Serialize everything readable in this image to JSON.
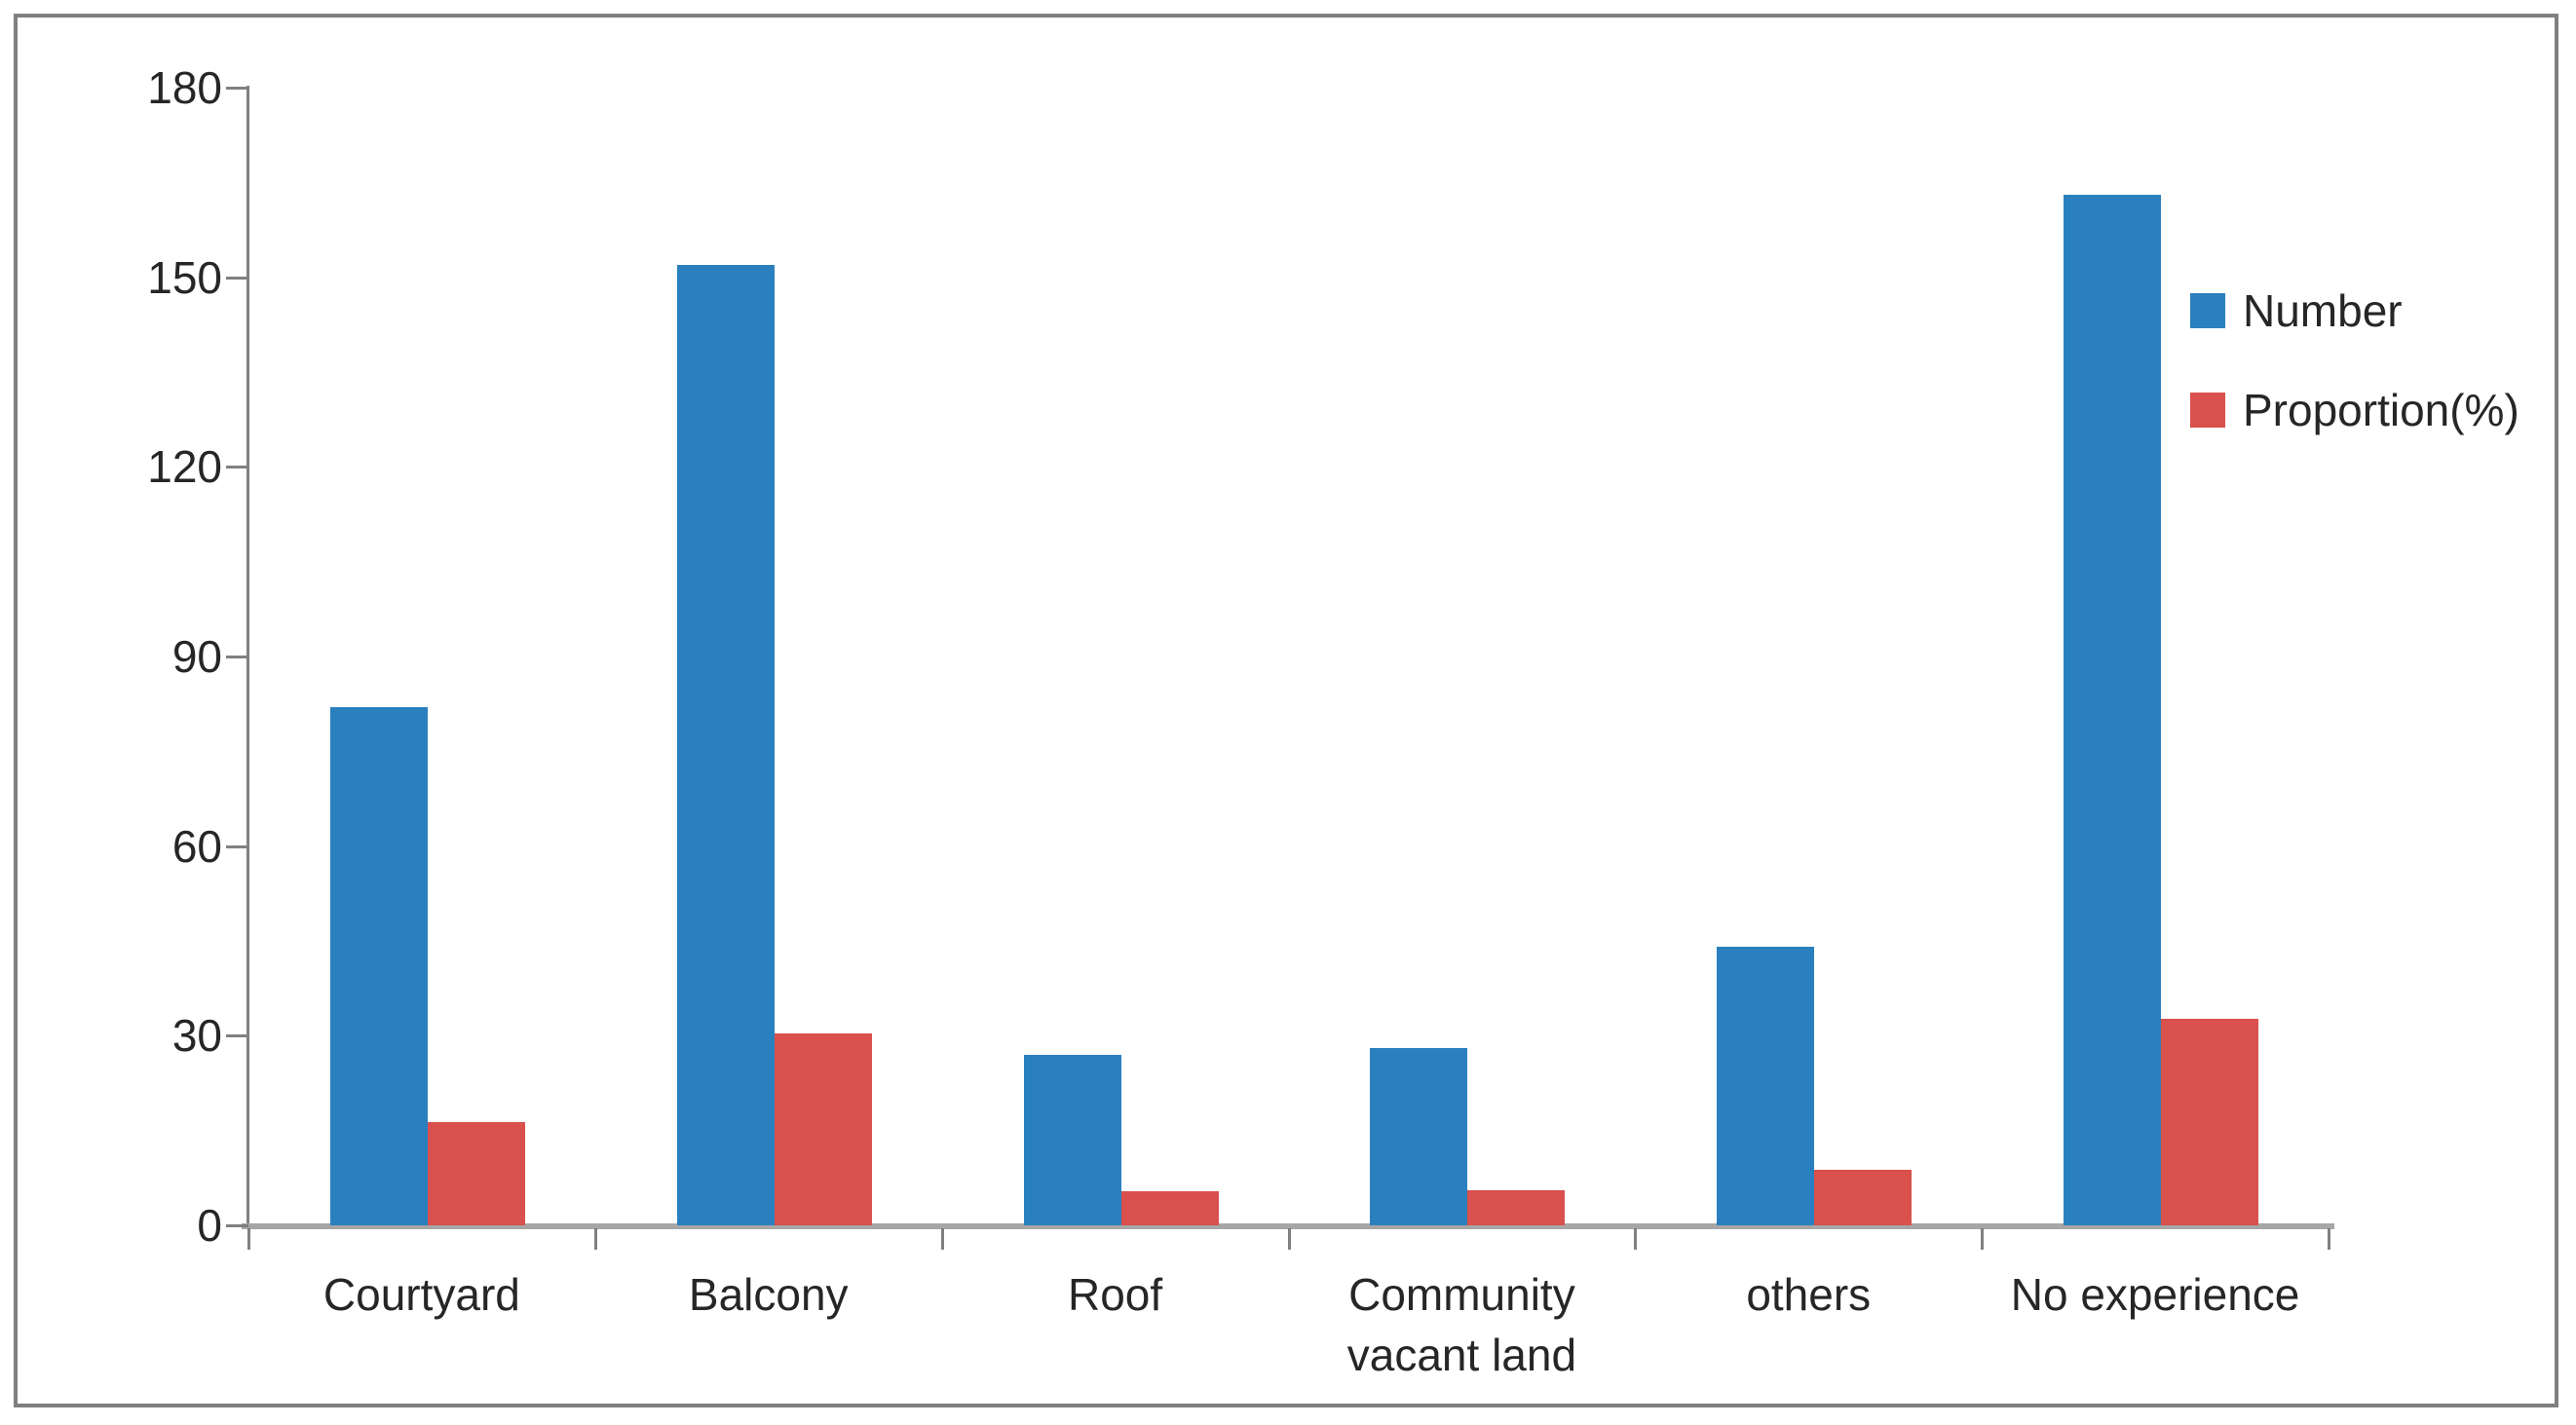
{
  "figure": {
    "background_color": "#ffffff",
    "frame_border_color": "#7f7f7f",
    "axis_line_color": "#808080",
    "baseline_color": "#a6a6a6",
    "text_color": "#262626"
  },
  "chart_data": {
    "type": "bar",
    "title": "",
    "xlabel": "",
    "ylabel": "",
    "categories": [
      "Courtyard",
      "Balcony",
      "Roof",
      "Community vacant land",
      "others",
      "No experience"
    ],
    "series": [
      {
        "name": "Number",
        "color": "#2a80be",
        "values": [
          82,
          152,
          27,
          28,
          44,
          163
        ]
      },
      {
        "name": "Proportion(%)",
        "color": "#d9504d",
        "values": [
          16.4,
          30.4,
          5.4,
          5.6,
          8.8,
          32.6
        ]
      }
    ],
    "ylim": [
      0,
      180
    ],
    "ytick_step": 30,
    "ytick_labels": [
      "0",
      "30",
      "60",
      "90",
      "120",
      "150",
      "180"
    ],
    "grid": false,
    "legend_position": "right-top"
  },
  "legend": {
    "items": [
      {
        "label": "Number",
        "color": "#2a80be"
      },
      {
        "label": "Proportion(%)",
        "color": "#d9504d"
      }
    ]
  }
}
